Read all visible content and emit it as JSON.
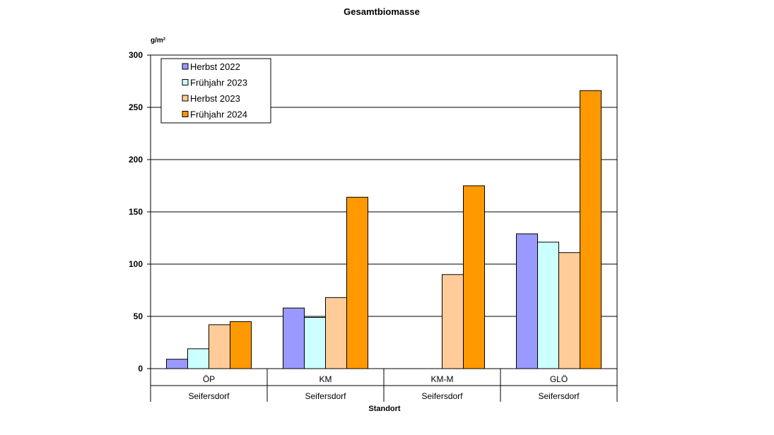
{
  "chart_data": {
    "type": "bar",
    "title": "Gesamtbiomasse",
    "ylabel": "g/m²",
    "xlabel": "Standort",
    "ylim": [
      0,
      300
    ],
    "yticks": [
      0,
      50,
      100,
      150,
      200,
      250,
      300
    ],
    "grid": true,
    "legend_position": "top-left",
    "categories": [
      "ÖP",
      "KM",
      "KM-M",
      "GLÖ"
    ],
    "category_groups": [
      "Seifersdorf",
      "Seifersdorf",
      "Seifersdorf",
      "Seifersdorf"
    ],
    "series": [
      {
        "name": "Herbst 2022",
        "color": "#9999ff",
        "values": [
          9,
          58,
          null,
          129
        ]
      },
      {
        "name": "Frühjahr  2023",
        "color": "#ccffff",
        "values": [
          19,
          49,
          null,
          121
        ]
      },
      {
        "name": "Herbst 2023",
        "color": "#ffcc99",
        "values": [
          42,
          68,
          90,
          111
        ]
      },
      {
        "name": "Frühjahr  2024",
        "color": "#ff9900",
        "values": [
          45,
          164,
          175,
          266
        ]
      }
    ]
  }
}
